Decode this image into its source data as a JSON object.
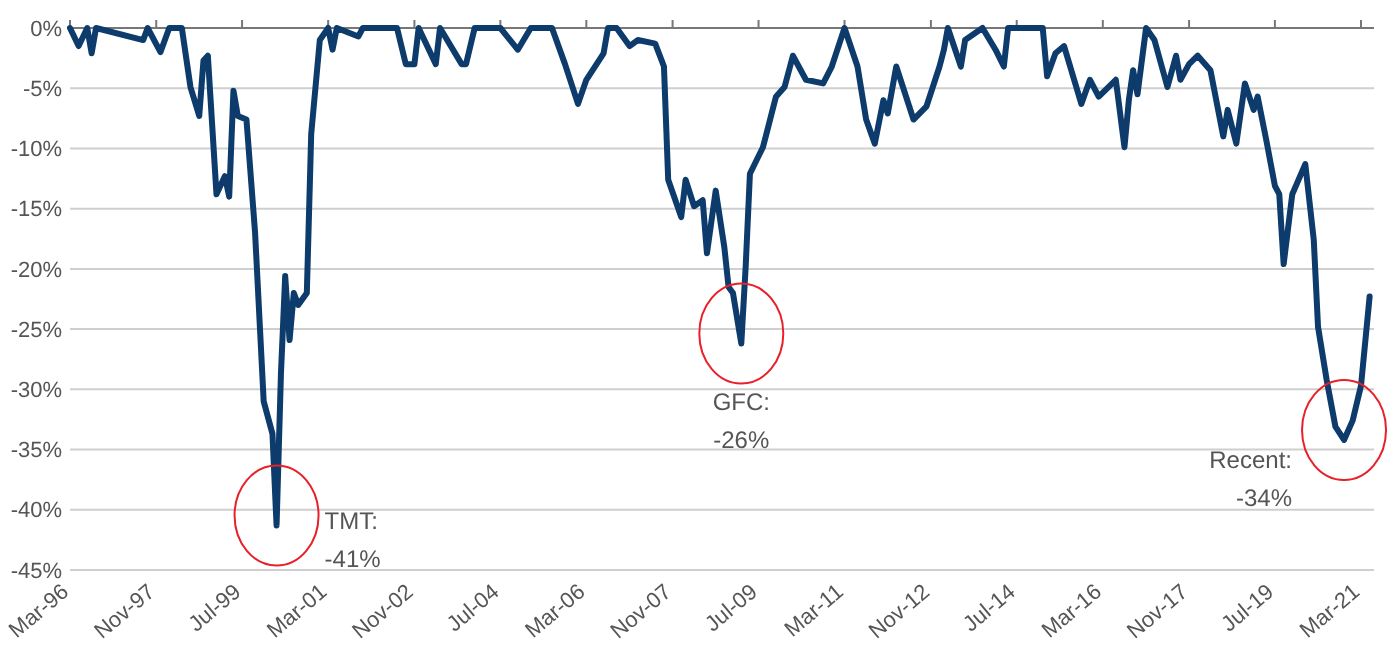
{
  "chart_data": {
    "type": "line",
    "x": [
      "1996-03",
      "1996-05",
      "1996-07",
      "1996-08",
      "1996-09",
      "1997-08",
      "1997-09",
      "1997-12",
      "1998-02",
      "1998-05",
      "1998-07",
      "1998-09",
      "1998-10",
      "1998-11",
      "1999-01",
      "1999-03",
      "1999-04",
      "1999-05",
      "1999-06",
      "1999-08",
      "1999-10",
      "1999-12",
      "2000-02",
      "2000-03",
      "2000-04",
      "2000-05",
      "2000-06",
      "2000-07",
      "2000-08",
      "2000-10",
      "2000-11",
      "2001-01",
      "2001-03",
      "2001-04",
      "2001-05",
      "2001-10",
      "2001-11",
      "2002-07",
      "2002-09",
      "2002-11",
      "2002-12",
      "2003-04",
      "2003-05",
      "2003-10",
      "2003-11",
      "2004-01",
      "2004-07",
      "2004-11",
      "2005-02",
      "2005-07",
      "2005-10",
      "2006-01",
      "2006-03",
      "2006-07",
      "2006-08",
      "2006-10",
      "2007-01",
      "2007-03",
      "2007-07",
      "2007-09",
      "2007-10",
      "2008-01",
      "2008-02",
      "2008-04",
      "2008-06",
      "2008-07",
      "2008-09",
      "2008-11",
      "2008-12",
      "2009-01",
      "2009-03",
      "2009-04",
      "2009-05",
      "2009-08",
      "2009-09",
      "2009-11",
      "2010-01",
      "2010-03",
      "2010-06",
      "2010-10",
      "2010-12",
      "2011-03",
      "2011-06",
      "2011-08",
      "2011-10",
      "2011-12",
      "2012-01",
      "2012-03",
      "2012-07",
      "2012-10",
      "2013-01",
      "2013-02",
      "2013-03",
      "2013-06",
      "2013-07",
      "2013-11",
      "2014-02",
      "2014-04",
      "2014-05",
      "2015-01",
      "2015-02",
      "2015-04",
      "2015-06",
      "2015-10",
      "2015-12",
      "2016-02",
      "2016-06",
      "2016-08",
      "2016-09",
      "2016-10",
      "2016-11",
      "2017-01",
      "2017-03",
      "2017-06",
      "2017-08",
      "2017-09",
      "2017-11",
      "2018-01",
      "2018-04",
      "2018-07",
      "2018-08",
      "2018-10",
      "2018-12",
      "2019-02",
      "2019-03",
      "2019-05",
      "2019-07",
      "2019-08",
      "2019-09",
      "2019-11",
      "2020-02",
      "2020-04",
      "2020-05",
      "2020-07",
      "2020-09",
      "2020-11",
      "2021-01",
      "2021-03",
      "2021-05"
    ],
    "series": [
      {
        "color": "#0d3b6b",
        "values": [
          0,
          -1.5,
          0,
          -2.1,
          0,
          -1,
          0,
          -2,
          0,
          0,
          -4.9,
          -7.3,
          -2.7,
          -2.3,
          -13.8,
          -12.3,
          -14,
          -5.2,
          -7.3,
          -7.6,
          -17,
          -31,
          -33.7,
          -41.3,
          -28.7,
          -20.6,
          -25.9,
          -22,
          -23,
          -22,
          -8.8,
          -1,
          0,
          -1.8,
          0,
          -0.7,
          0,
          0,
          -3,
          -3,
          0,
          -3,
          0,
          -3,
          -3,
          0,
          0,
          -1.8,
          0,
          0,
          -3,
          -6.3,
          -4.3,
          -2.1,
          0,
          0,
          -1.5,
          -1,
          -1.3,
          -3.2,
          -12.6,
          -15.7,
          -12.6,
          -14.8,
          -14.3,
          -18.7,
          -13.5,
          -18.2,
          -21.5,
          -22,
          -26.2,
          -19.8,
          -12.1,
          -9.9,
          -8.5,
          -5.7,
          -4.9,
          -2.3,
          -4.3,
          -4.6,
          -3.2,
          0,
          -3.2,
          -7.6,
          -9.6,
          -6,
          -7.1,
          -3.2,
          -7.6,
          -6.5,
          -3.2,
          -1.8,
          0,
          -3.2,
          -1,
          0,
          -1.8,
          -3.2,
          0,
          0,
          -4,
          -2.1,
          -1.5,
          -6.3,
          -4.3,
          -5.7,
          -4.3,
          -9.9,
          -6,
          -3.5,
          -5.5,
          0,
          -1,
          -4.9,
          -2.3,
          -4.3,
          -3,
          -2.3,
          -3.5,
          -9,
          -6.8,
          -9.6,
          -4.6,
          -6.8,
          -5.7,
          -9.3,
          -13.1,
          -13.8,
          -19.6,
          -13.8,
          -11.3,
          -17.6,
          -24.8,
          -29.2,
          -33.1,
          -34.2,
          -32.6,
          -29.7,
          -22.3
        ]
      }
    ],
    "xlim": [
      "1996-03",
      "2021-06"
    ],
    "xticks": [
      {
        "value": "1996-03",
        "label": "Mar-96"
      },
      {
        "value": "1997-11",
        "label": "Nov-97"
      },
      {
        "value": "1999-07",
        "label": "Jul-99"
      },
      {
        "value": "2001-03",
        "label": "Mar-01"
      },
      {
        "value": "2002-11",
        "label": "Nov-02"
      },
      {
        "value": "2004-07",
        "label": "Jul-04"
      },
      {
        "value": "2006-03",
        "label": "Mar-06"
      },
      {
        "value": "2007-11",
        "label": "Nov-07"
      },
      {
        "value": "2009-07",
        "label": "Jul-09"
      },
      {
        "value": "2011-03",
        "label": "Mar-11"
      },
      {
        "value": "2012-11",
        "label": "Nov-12"
      },
      {
        "value": "2014-07",
        "label": "Jul-14"
      },
      {
        "value": "2016-03",
        "label": "Mar-16"
      },
      {
        "value": "2017-11",
        "label": "Nov-17"
      },
      {
        "value": "2019-07",
        "label": "Jul-19"
      },
      {
        "value": "2021-03",
        "label": "Mar-21"
      }
    ],
    "ylim": [
      -45,
      0
    ],
    "yticks": [
      {
        "value": 0,
        "label": "0%"
      },
      {
        "value": -5,
        "label": "-5%"
      },
      {
        "value": -10,
        "label": "-10%"
      },
      {
        "value": -15,
        "label": "-15%"
      },
      {
        "value": -20,
        "label": "-20%"
      },
      {
        "value": -25,
        "label": "-25%"
      },
      {
        "value": -30,
        "label": "-30%"
      },
      {
        "value": -35,
        "label": "-35%"
      },
      {
        "value": -40,
        "label": "-40%"
      },
      {
        "value": -45,
        "label": "-45%"
      }
    ],
    "grid": "y",
    "marker": "none",
    "line_style": "solid",
    "annotations": [
      {
        "text": "TMT:\n-41%",
        "x": "2000-03",
        "y": -41.3
      },
      {
        "text": "GFC:\n-26%",
        "x": "2009-03",
        "y": -26.2
      },
      {
        "text": "Recent:\n-34%",
        "x": "2020-11",
        "y": -34.2
      }
    ]
  }
}
